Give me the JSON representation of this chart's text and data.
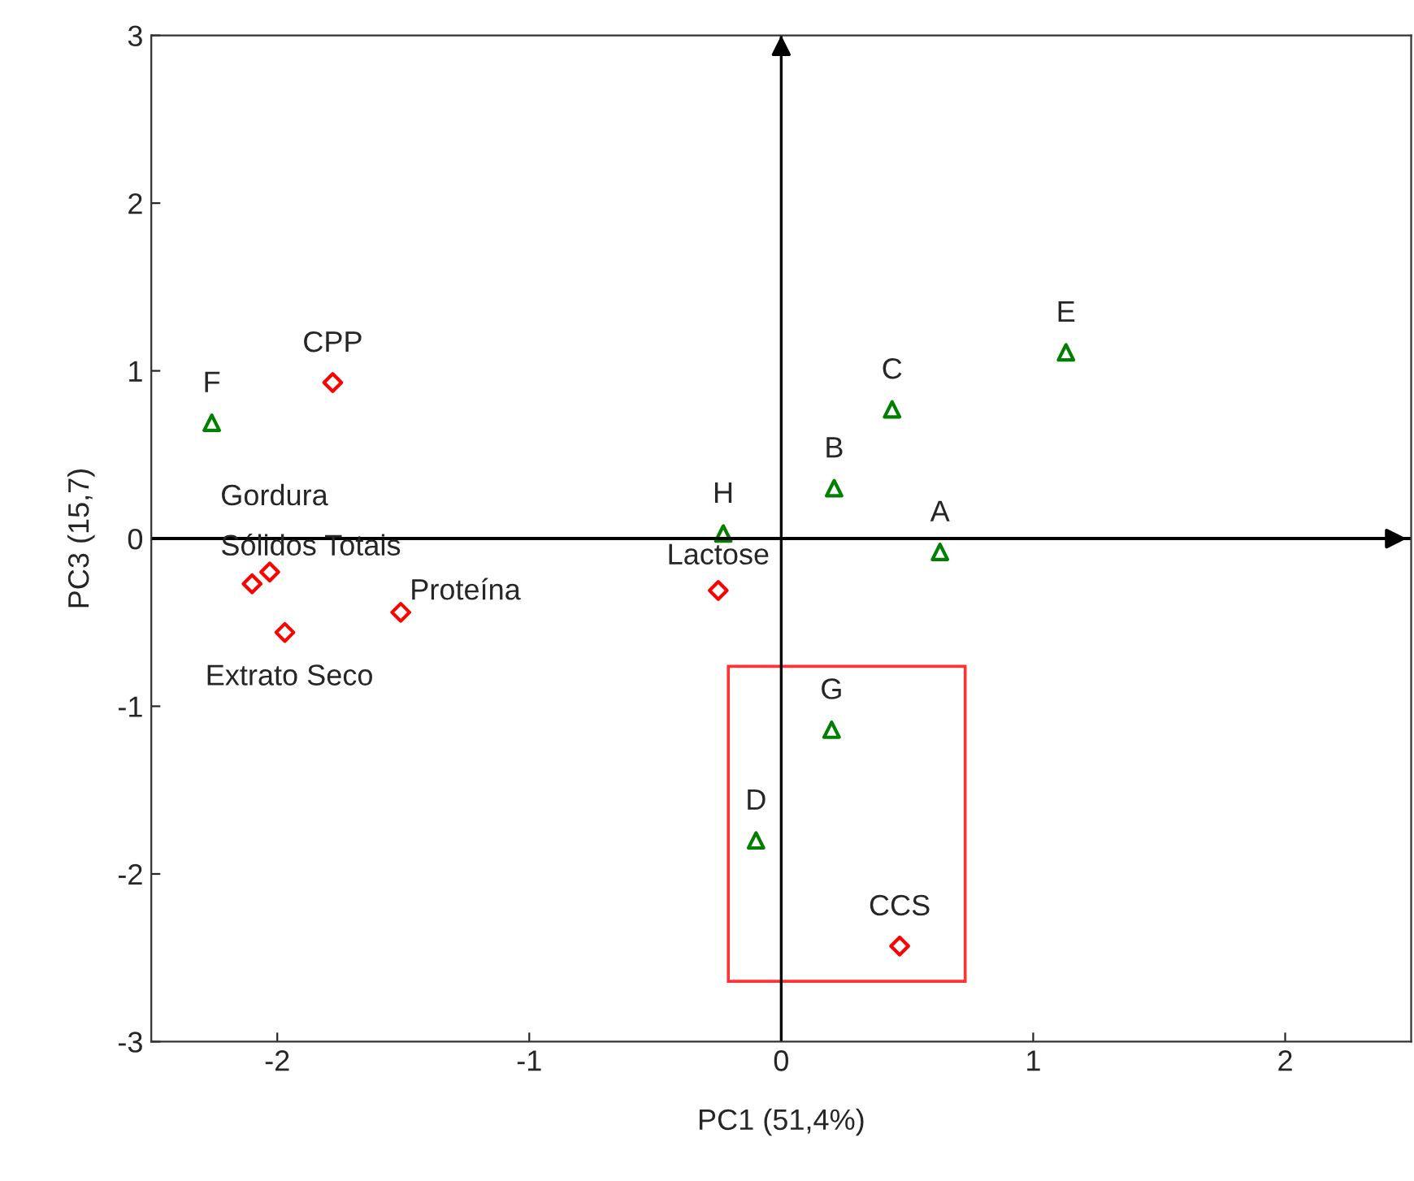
{
  "chart_data": {
    "type": "scatter",
    "xlabel": "PC1 (51,4%)",
    "ylabel": "PC3 (15,7)",
    "xlim": [
      -2.5,
      2.5
    ],
    "ylim": [
      -3,
      3
    ],
    "xticks": [
      -2,
      -1,
      0,
      1,
      2
    ],
    "yticks": [
      -3,
      -2,
      -1,
      0,
      1,
      2,
      3
    ],
    "grid": false,
    "legend": false,
    "series": [
      {
        "color": "#ff0000",
        "marker": "diamond",
        "x": [
          -1.78,
          -2.03,
          -2.1,
          -1.97,
          -1.51,
          -0.25,
          0.47
        ],
        "values": [
          0.93,
          -0.2,
          -0.27,
          -0.56,
          -0.44,
          -0.31,
          -2.43
        ]
      },
      {
        "color": "#008000",
        "marker": "triangle",
        "x": [
          -2.26,
          -0.23,
          0.21,
          0.44,
          1.13,
          0.63,
          0.2,
          -0.1
        ],
        "values": [
          0.69,
          0.03,
          0.3,
          0.77,
          1.11,
          -0.08,
          -1.14,
          -1.8
        ]
      }
    ],
    "ref_lines": [
      {
        "axis": "x",
        "value": 0,
        "color": "#000000"
      },
      {
        "axis": "y",
        "value": 0,
        "color": "#000000"
      }
    ],
    "annotations": [
      {
        "text": "F",
        "x": -2.26,
        "y": 0.69
      },
      {
        "text": "CPP",
        "x": -1.78,
        "y": 0.93
      },
      {
        "text": "Gordura",
        "x": -2.03,
        "y": -0.2
      },
      {
        "text": "Sólidos Totais",
        "x": -2.1,
        "y": -0.27
      },
      {
        "text": "Extrato Seco",
        "x": -1.97,
        "y": -0.56
      },
      {
        "text": "Proteína",
        "x": -1.51,
        "y": -0.44
      },
      {
        "text": "H",
        "x": -0.23,
        "y": 0.03
      },
      {
        "text": "Lactose",
        "x": -0.25,
        "y": -0.31
      },
      {
        "text": "B",
        "x": 0.21,
        "y": 0.3
      },
      {
        "text": "C",
        "x": 0.44,
        "y": 0.77
      },
      {
        "text": "E",
        "x": 1.13,
        "y": 1.11
      },
      {
        "text": "A",
        "x": 0.63,
        "y": -0.08
      },
      {
        "text": "G",
        "x": 0.2,
        "y": -1.14
      },
      {
        "text": "D",
        "x": -0.1,
        "y": -1.8
      },
      {
        "text": "CCS",
        "x": 0.47,
        "y": -2.43
      }
    ]
  }
}
